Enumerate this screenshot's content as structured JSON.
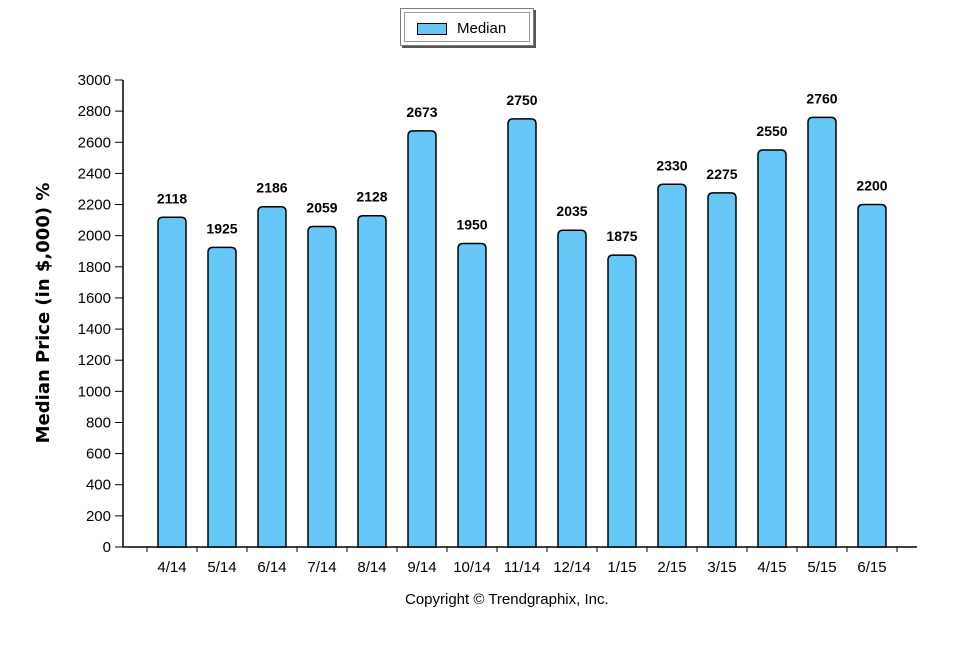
{
  "legend": {
    "label": "Median",
    "swatch_color": "#66c6f5"
  },
  "copyright": "Copyright © Trendgraphix, Inc.",
  "chart_data": {
    "type": "bar",
    "ylabel": "Median Price (in $,000) %",
    "xlabel": "",
    "categories": [
      "4/14",
      "5/14",
      "6/14",
      "7/14",
      "8/14",
      "9/14",
      "10/14",
      "11/14",
      "12/14",
      "1/15",
      "2/15",
      "3/15",
      "4/15",
      "5/15",
      "6/15"
    ],
    "series": [
      {
        "name": "Median",
        "values": [
          2118,
          1925,
          2186,
          2059,
          2128,
          2673,
          1950,
          2750,
          2035,
          1875,
          2330,
          2275,
          2550,
          2760,
          2200
        ]
      }
    ],
    "ylim": [
      0,
      3000
    ],
    "yticks": [
      0,
      200,
      400,
      600,
      800,
      1000,
      1200,
      1400,
      1600,
      1800,
      2000,
      2200,
      2400,
      2600,
      2800,
      3000
    ],
    "bar_color": "#66c6f5",
    "bar_outline": "#000000",
    "legend_position": "top-center",
    "grid": false
  }
}
